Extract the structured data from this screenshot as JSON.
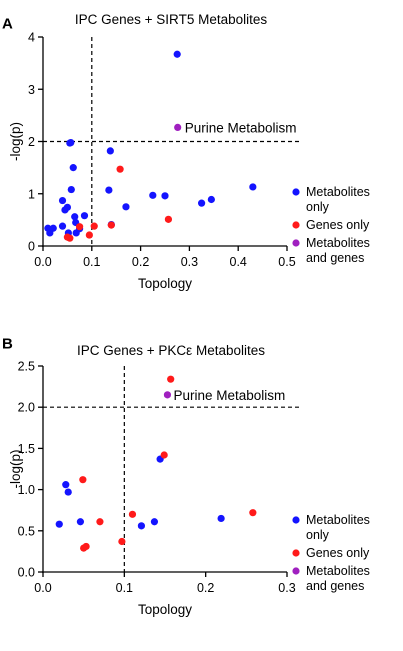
{
  "colors": {
    "metabolites": "#1414ff",
    "genes": "#ff1a1a",
    "both": "#a020c0"
  },
  "chart_data": [
    {
      "type": "scatter",
      "panel_label": "A",
      "title": "IPC Genes + SIRT5 Metabolites",
      "xlabel": "Topology",
      "ylabel": "-log(p)",
      "xlim": [
        0.0,
        0.5
      ],
      "ylim": [
        0,
        4
      ],
      "xticks": [
        "0.0",
        "0.1",
        "0.2",
        "0.3",
        "0.4",
        "0.5"
      ],
      "yticks": [
        "0",
        "1",
        "2",
        "3",
        "4"
      ],
      "xtick_values": [
        0.0,
        0.1,
        0.2,
        0.3,
        0.4,
        0.5
      ],
      "ytick_values": [
        0,
        1,
        2,
        3,
        4
      ],
      "threshold_x": 0.1,
      "threshold_y": 2.0,
      "grid": false,
      "legend_position": "right",
      "annotation": {
        "text": "Purine Metabolism",
        "x": 0.276,
        "y": 2.27
      },
      "series": [
        {
          "name": "Metabolites only",
          "points": [
            [
              0.01,
              0.34
            ],
            [
              0.014,
              0.25
            ],
            [
              0.021,
              0.34
            ],
            [
              0.04,
              0.38
            ],
            [
              0.04,
              0.87
            ],
            [
              0.045,
              0.69
            ],
            [
              0.05,
              0.74
            ],
            [
              0.052,
              0.25
            ],
            [
              0.055,
              1.97
            ],
            [
              0.057,
              1.98
            ],
            [
              0.058,
              1.08
            ],
            [
              0.062,
              1.5
            ],
            [
              0.065,
              0.56
            ],
            [
              0.067,
              0.45
            ],
            [
              0.068,
              0.25
            ],
            [
              0.075,
              0.33
            ],
            [
              0.085,
              0.58
            ],
            [
              0.135,
              1.07
            ],
            [
              0.138,
              1.82
            ],
            [
              0.14,
              0.41
            ],
            [
              0.17,
              0.75
            ],
            [
              0.225,
              0.97
            ],
            [
              0.25,
              0.96
            ],
            [
              0.275,
              3.67
            ],
            [
              0.325,
              0.82
            ],
            [
              0.345,
              0.89
            ],
            [
              0.43,
              1.13
            ]
          ]
        },
        {
          "name": "Genes only",
          "points": [
            [
              0.05,
              0.17
            ],
            [
              0.055,
              0.15
            ],
            [
              0.075,
              0.37
            ],
            [
              0.095,
              0.21
            ],
            [
              0.105,
              0.38
            ],
            [
              0.14,
              0.4
            ],
            [
              0.158,
              1.47
            ],
            [
              0.257,
              0.51
            ]
          ]
        },
        {
          "name": "Metabolites and genes",
          "points": [
            [
              0.276,
              2.27
            ]
          ]
        }
      ]
    },
    {
      "type": "scatter",
      "panel_label": "B",
      "title": "IPC Genes + PKCε Metabolites",
      "xlabel": "Topology",
      "ylabel": "-log(p)",
      "xlim": [
        0.0,
        0.3
      ],
      "ylim": [
        0.0,
        2.5
      ],
      "xticks": [
        "0.0",
        "0.1",
        "0.2",
        "0.3"
      ],
      "yticks": [
        "0.0",
        "0.5",
        "1.0",
        "1.5",
        "2.0",
        "2.5"
      ],
      "xtick_values": [
        0.0,
        0.1,
        0.2,
        0.3
      ],
      "ytick_values": [
        0.0,
        0.5,
        1.0,
        1.5,
        2.0,
        2.5
      ],
      "threshold_x": 0.1,
      "threshold_y": 2.0,
      "grid": false,
      "legend_position": "right",
      "annotation": {
        "text": "Purine Metabolism",
        "x": 0.153,
        "y": 2.15
      },
      "series": [
        {
          "name": "Metabolites only",
          "points": [
            [
              0.02,
              0.58
            ],
            [
              0.028,
              1.06
            ],
            [
              0.031,
              0.97
            ],
            [
              0.046,
              0.61
            ],
            [
              0.121,
              0.56
            ],
            [
              0.137,
              0.61
            ],
            [
              0.144,
              1.37
            ],
            [
              0.219,
              0.65
            ]
          ]
        },
        {
          "name": "Genes only",
          "points": [
            [
              0.049,
              1.12
            ],
            [
              0.05,
              0.29
            ],
            [
              0.053,
              0.31
            ],
            [
              0.07,
              0.61
            ],
            [
              0.097,
              0.37
            ],
            [
              0.11,
              0.7
            ],
            [
              0.149,
              1.42
            ],
            [
              0.157,
              2.34
            ],
            [
              0.258,
              0.72
            ]
          ]
        },
        {
          "name": "Metabolites and genes",
          "points": [
            [
              0.153,
              2.15
            ]
          ]
        }
      ]
    }
  ],
  "legend": [
    {
      "lines": [
        "Metabolites",
        "only"
      ],
      "color_key": "metabolites"
    },
    {
      "lines": [
        "Genes only"
      ],
      "color_key": "genes"
    },
    {
      "lines": [
        "Metabolites",
        "and genes"
      ],
      "color_key": "both"
    }
  ]
}
